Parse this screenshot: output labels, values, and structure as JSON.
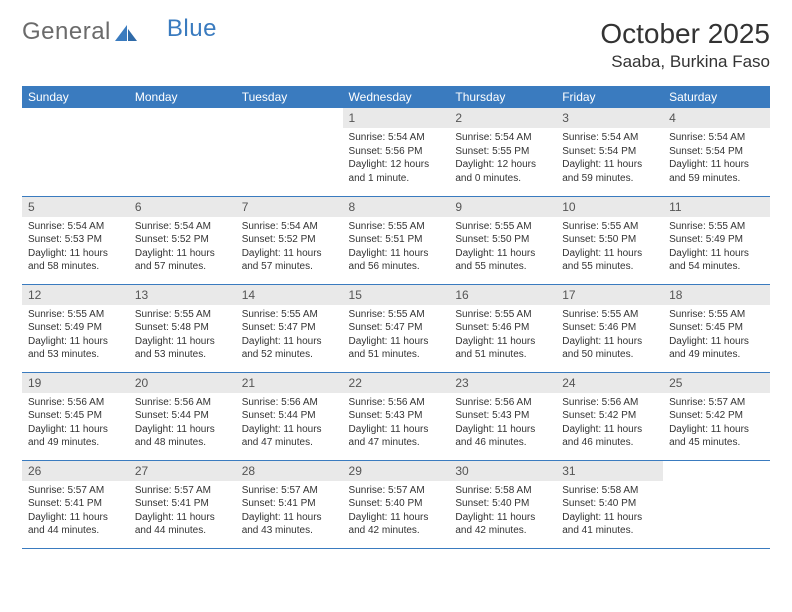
{
  "brand": {
    "part1": "General",
    "part2": "Blue"
  },
  "title": "October 2025",
  "location": "Saaba, Burkina Faso",
  "colors": {
    "header_bg": "#3a7bbf",
    "header_text": "#ffffff",
    "daynum_bg": "#e9e9e9",
    "border": "#3a7bbf",
    "logo_gray": "#6b6b6b",
    "logo_blue": "#3a7bbf",
    "text": "#333333",
    "background": "#ffffff"
  },
  "weekdays": [
    "Sunday",
    "Monday",
    "Tuesday",
    "Wednesday",
    "Thursday",
    "Friday",
    "Saturday"
  ],
  "weeks": [
    [
      {
        "n": "",
        "t": ""
      },
      {
        "n": "",
        "t": ""
      },
      {
        "n": "",
        "t": ""
      },
      {
        "n": "1",
        "t": "Sunrise: 5:54 AM\nSunset: 5:56 PM\nDaylight: 12 hours and 1 minute."
      },
      {
        "n": "2",
        "t": "Sunrise: 5:54 AM\nSunset: 5:55 PM\nDaylight: 12 hours and 0 minutes."
      },
      {
        "n": "3",
        "t": "Sunrise: 5:54 AM\nSunset: 5:54 PM\nDaylight: 11 hours and 59 minutes."
      },
      {
        "n": "4",
        "t": "Sunrise: 5:54 AM\nSunset: 5:54 PM\nDaylight: 11 hours and 59 minutes."
      }
    ],
    [
      {
        "n": "5",
        "t": "Sunrise: 5:54 AM\nSunset: 5:53 PM\nDaylight: 11 hours and 58 minutes."
      },
      {
        "n": "6",
        "t": "Sunrise: 5:54 AM\nSunset: 5:52 PM\nDaylight: 11 hours and 57 minutes."
      },
      {
        "n": "7",
        "t": "Sunrise: 5:54 AM\nSunset: 5:52 PM\nDaylight: 11 hours and 57 minutes."
      },
      {
        "n": "8",
        "t": "Sunrise: 5:55 AM\nSunset: 5:51 PM\nDaylight: 11 hours and 56 minutes."
      },
      {
        "n": "9",
        "t": "Sunrise: 5:55 AM\nSunset: 5:50 PM\nDaylight: 11 hours and 55 minutes."
      },
      {
        "n": "10",
        "t": "Sunrise: 5:55 AM\nSunset: 5:50 PM\nDaylight: 11 hours and 55 minutes."
      },
      {
        "n": "11",
        "t": "Sunrise: 5:55 AM\nSunset: 5:49 PM\nDaylight: 11 hours and 54 minutes."
      }
    ],
    [
      {
        "n": "12",
        "t": "Sunrise: 5:55 AM\nSunset: 5:49 PM\nDaylight: 11 hours and 53 minutes."
      },
      {
        "n": "13",
        "t": "Sunrise: 5:55 AM\nSunset: 5:48 PM\nDaylight: 11 hours and 53 minutes."
      },
      {
        "n": "14",
        "t": "Sunrise: 5:55 AM\nSunset: 5:47 PM\nDaylight: 11 hours and 52 minutes."
      },
      {
        "n": "15",
        "t": "Sunrise: 5:55 AM\nSunset: 5:47 PM\nDaylight: 11 hours and 51 minutes."
      },
      {
        "n": "16",
        "t": "Sunrise: 5:55 AM\nSunset: 5:46 PM\nDaylight: 11 hours and 51 minutes."
      },
      {
        "n": "17",
        "t": "Sunrise: 5:55 AM\nSunset: 5:46 PM\nDaylight: 11 hours and 50 minutes."
      },
      {
        "n": "18",
        "t": "Sunrise: 5:55 AM\nSunset: 5:45 PM\nDaylight: 11 hours and 49 minutes."
      }
    ],
    [
      {
        "n": "19",
        "t": "Sunrise: 5:56 AM\nSunset: 5:45 PM\nDaylight: 11 hours and 49 minutes."
      },
      {
        "n": "20",
        "t": "Sunrise: 5:56 AM\nSunset: 5:44 PM\nDaylight: 11 hours and 48 minutes."
      },
      {
        "n": "21",
        "t": "Sunrise: 5:56 AM\nSunset: 5:44 PM\nDaylight: 11 hours and 47 minutes."
      },
      {
        "n": "22",
        "t": "Sunrise: 5:56 AM\nSunset: 5:43 PM\nDaylight: 11 hours and 47 minutes."
      },
      {
        "n": "23",
        "t": "Sunrise: 5:56 AM\nSunset: 5:43 PM\nDaylight: 11 hours and 46 minutes."
      },
      {
        "n": "24",
        "t": "Sunrise: 5:56 AM\nSunset: 5:42 PM\nDaylight: 11 hours and 46 minutes."
      },
      {
        "n": "25",
        "t": "Sunrise: 5:57 AM\nSunset: 5:42 PM\nDaylight: 11 hours and 45 minutes."
      }
    ],
    [
      {
        "n": "26",
        "t": "Sunrise: 5:57 AM\nSunset: 5:41 PM\nDaylight: 11 hours and 44 minutes."
      },
      {
        "n": "27",
        "t": "Sunrise: 5:57 AM\nSunset: 5:41 PM\nDaylight: 11 hours and 44 minutes."
      },
      {
        "n": "28",
        "t": "Sunrise: 5:57 AM\nSunset: 5:41 PM\nDaylight: 11 hours and 43 minutes."
      },
      {
        "n": "29",
        "t": "Sunrise: 5:57 AM\nSunset: 5:40 PM\nDaylight: 11 hours and 42 minutes."
      },
      {
        "n": "30",
        "t": "Sunrise: 5:58 AM\nSunset: 5:40 PM\nDaylight: 11 hours and 42 minutes."
      },
      {
        "n": "31",
        "t": "Sunrise: 5:58 AM\nSunset: 5:40 PM\nDaylight: 11 hours and 41 minutes."
      },
      {
        "n": "",
        "t": ""
      }
    ]
  ]
}
